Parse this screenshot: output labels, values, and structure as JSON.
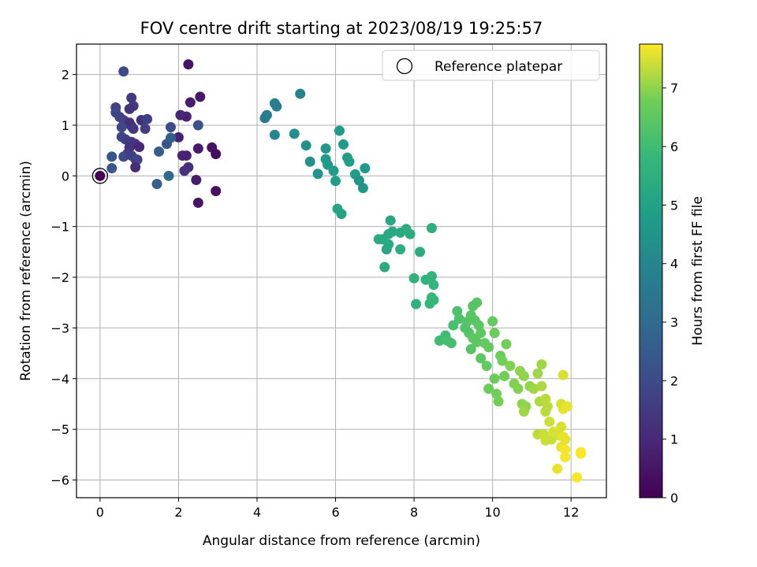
{
  "chart_data": {
    "type": "scatter",
    "title": "FOV centre drift starting at 2023/08/19 19:25:57",
    "xlabel": "Angular distance from reference (arcmin)",
    "ylabel": "Rotation from reference (arcmin)",
    "xlim": [
      -0.6,
      12.9
    ],
    "ylim": [
      -6.35,
      2.6
    ],
    "xticks": [
      0,
      2,
      4,
      6,
      8,
      10,
      12
    ],
    "yticks": [
      -6,
      -5,
      -4,
      -3,
      -2,
      -1,
      0,
      1,
      2
    ],
    "grid": true,
    "legend": {
      "position": "top-right",
      "entries": [
        "Reference platepar"
      ]
    },
    "colorbar": {
      "label": "Hours from first FF file",
      "range": [
        0,
        7.75
      ],
      "ticks": [
        0,
        1,
        2,
        3,
        4,
        5,
        6,
        7
      ],
      "colormap": "viridis"
    },
    "reference_point": {
      "x": 0,
      "y": 0
    },
    "points": [
      {
        "x": 0.0,
        "y": 0.0,
        "c": 0.0
      },
      {
        "x": 2.25,
        "y": 2.2,
        "c": 0.5
      },
      {
        "x": 2.55,
        "y": 1.56,
        "c": 0.6
      },
      {
        "x": 2.3,
        "y": 1.45,
        "c": 0.7
      },
      {
        "x": 2.2,
        "y": 1.17,
        "c": 0.8
      },
      {
        "x": 2.05,
        "y": 1.2,
        "c": 0.9
      },
      {
        "x": 2.0,
        "y": 0.76,
        "c": 0.8
      },
      {
        "x": 2.5,
        "y": 0.54,
        "c": 0.6
      },
      {
        "x": 2.85,
        "y": 0.56,
        "c": 0.4
      },
      {
        "x": 2.95,
        "y": 0.43,
        "c": 0.3
      },
      {
        "x": 2.1,
        "y": 0.4,
        "c": 0.9
      },
      {
        "x": 2.2,
        "y": 0.4,
        "c": 0.8
      },
      {
        "x": 2.25,
        "y": 0.17,
        "c": 1.2
      },
      {
        "x": 2.15,
        "y": 0.1,
        "c": 1.3
      },
      {
        "x": 2.45,
        "y": -0.08,
        "c": 0.7
      },
      {
        "x": 2.95,
        "y": -0.3,
        "c": 0.4
      },
      {
        "x": 2.5,
        "y": -0.53,
        "c": 0.5
      },
      {
        "x": 2.5,
        "y": 1.0,
        "c": 2.2
      },
      {
        "x": 0.6,
        "y": 2.06,
        "c": 2.0
      },
      {
        "x": 0.8,
        "y": 1.54,
        "c": 1.5
      },
      {
        "x": 0.85,
        "y": 1.38,
        "c": 1.4
      },
      {
        "x": 0.75,
        "y": 1.32,
        "c": 1.3
      },
      {
        "x": 0.4,
        "y": 1.35,
        "c": 1.8
      },
      {
        "x": 0.4,
        "y": 1.25,
        "c": 1.9
      },
      {
        "x": 0.5,
        "y": 1.16,
        "c": 1.8
      },
      {
        "x": 0.6,
        "y": 1.1,
        "c": 1.8
      },
      {
        "x": 0.75,
        "y": 1.05,
        "c": 1.3
      },
      {
        "x": 1.05,
        "y": 1.1,
        "c": 1.2
      },
      {
        "x": 1.2,
        "y": 1.12,
        "c": 1.7
      },
      {
        "x": 0.55,
        "y": 0.96,
        "c": 1.9
      },
      {
        "x": 0.8,
        "y": 0.98,
        "c": 1.2
      },
      {
        "x": 0.85,
        "y": 0.93,
        "c": 1.4
      },
      {
        "x": 1.15,
        "y": 0.93,
        "c": 1.6
      },
      {
        "x": 1.8,
        "y": 0.96,
        "c": 2.1
      },
      {
        "x": 0.55,
        "y": 0.77,
        "c": 1.9
      },
      {
        "x": 0.65,
        "y": 0.72,
        "c": 1.7
      },
      {
        "x": 0.8,
        "y": 0.67,
        "c": 1.5
      },
      {
        "x": 0.9,
        "y": 0.63,
        "c": 1.4
      },
      {
        "x": 1.0,
        "y": 0.57,
        "c": 1.0
      },
      {
        "x": 0.75,
        "y": 0.56,
        "c": 1.3
      },
      {
        "x": 0.7,
        "y": 0.44,
        "c": 1.5
      },
      {
        "x": 0.6,
        "y": 0.38,
        "c": 2.0
      },
      {
        "x": 0.8,
        "y": 0.4,
        "c": 1.6
      },
      {
        "x": 0.9,
        "y": 0.33,
        "c": 1.7
      },
      {
        "x": 0.95,
        "y": 0.32,
        "c": 1.8
      },
      {
        "x": 0.9,
        "y": 0.17,
        "c": 1.1
      },
      {
        "x": 0.3,
        "y": 0.38,
        "c": 2.4
      },
      {
        "x": 0.3,
        "y": 0.15,
        "c": 2.3
      },
      {
        "x": 1.5,
        "y": 0.48,
        "c": 2.6
      },
      {
        "x": 1.7,
        "y": 0.63,
        "c": 2.3
      },
      {
        "x": 1.8,
        "y": 0.75,
        "c": 2.6
      },
      {
        "x": 1.75,
        "y": 0.0,
        "c": 2.9
      },
      {
        "x": 1.45,
        "y": -0.16,
        "c": 2.7
      },
      {
        "x": 4.45,
        "y": 1.43,
        "c": 3.8
      },
      {
        "x": 4.5,
        "y": 1.37,
        "c": 3.7
      },
      {
        "x": 5.1,
        "y": 1.62,
        "c": 3.9
      },
      {
        "x": 4.2,
        "y": 1.14,
        "c": 3.5
      },
      {
        "x": 4.25,
        "y": 1.2,
        "c": 3.6
      },
      {
        "x": 4.45,
        "y": 0.81,
        "c": 4.0
      },
      {
        "x": 4.95,
        "y": 0.83,
        "c": 4.3
      },
      {
        "x": 5.25,
        "y": 0.6,
        "c": 4.4
      },
      {
        "x": 5.35,
        "y": 0.28,
        "c": 4.4
      },
      {
        "x": 5.55,
        "y": 0.04,
        "c": 4.5
      },
      {
        "x": 5.75,
        "y": 0.54,
        "c": 4.6
      },
      {
        "x": 5.75,
        "y": 0.33,
        "c": 4.7
      },
      {
        "x": 5.8,
        "y": 0.22,
        "c": 4.7
      },
      {
        "x": 5.95,
        "y": 0.1,
        "c": 4.8
      },
      {
        "x": 6.0,
        "y": -0.1,
        "c": 4.9
      },
      {
        "x": 6.1,
        "y": 0.89,
        "c": 4.8
      },
      {
        "x": 6.2,
        "y": 0.62,
        "c": 4.7
      },
      {
        "x": 6.3,
        "y": 0.36,
        "c": 4.8
      },
      {
        "x": 6.35,
        "y": 0.28,
        "c": 4.9
      },
      {
        "x": 6.5,
        "y": 0.03,
        "c": 4.9
      },
      {
        "x": 6.6,
        "y": -0.09,
        "c": 4.5
      },
      {
        "x": 6.7,
        "y": -0.24,
        "c": 4.6
      },
      {
        "x": 6.75,
        "y": 0.15,
        "c": 4.7
      },
      {
        "x": 6.05,
        "y": -0.65,
        "c": 5.1
      },
      {
        "x": 6.15,
        "y": -0.75,
        "c": 5.0
      },
      {
        "x": 7.4,
        "y": -0.88,
        "c": 5.2
      },
      {
        "x": 7.45,
        "y": -1.1,
        "c": 5.2
      },
      {
        "x": 7.35,
        "y": -1.15,
        "c": 5.3
      },
      {
        "x": 7.2,
        "y": -1.25,
        "c": 5.2
      },
      {
        "x": 7.35,
        "y": -1.35,
        "c": 5.3
      },
      {
        "x": 7.3,
        "y": -1.45,
        "c": 5.2
      },
      {
        "x": 7.65,
        "y": -1.12,
        "c": 5.3
      },
      {
        "x": 7.8,
        "y": -1.05,
        "c": 5.4
      },
      {
        "x": 7.9,
        "y": -1.15,
        "c": 5.4
      },
      {
        "x": 8.45,
        "y": -1.03,
        "c": 5.5
      },
      {
        "x": 8.15,
        "y": -1.5,
        "c": 5.4
      },
      {
        "x": 7.65,
        "y": -1.45,
        "c": 5.4
      },
      {
        "x": 7.1,
        "y": -1.25,
        "c": 5.3
      },
      {
        "x": 7.25,
        "y": -1.8,
        "c": 5.3
      },
      {
        "x": 8.0,
        "y": -2.02,
        "c": 5.6
      },
      {
        "x": 8.3,
        "y": -2.05,
        "c": 5.6
      },
      {
        "x": 8.45,
        "y": -1.98,
        "c": 5.7
      },
      {
        "x": 8.5,
        "y": -2.15,
        "c": 5.7
      },
      {
        "x": 8.45,
        "y": -2.4,
        "c": 5.8
      },
      {
        "x": 8.5,
        "y": -2.45,
        "c": 5.8
      },
      {
        "x": 8.4,
        "y": -2.52,
        "c": 5.8
      },
      {
        "x": 8.05,
        "y": -2.53,
        "c": 5.6
      },
      {
        "x": 8.65,
        "y": -3.25,
        "c": 6.0
      },
      {
        "x": 8.8,
        "y": -3.15,
        "c": 6.0
      },
      {
        "x": 8.85,
        "y": -3.25,
        "c": 6.1
      },
      {
        "x": 8.95,
        "y": -3.3,
        "c": 6.1
      },
      {
        "x": 9.0,
        "y": -2.95,
        "c": 6.1
      },
      {
        "x": 9.1,
        "y": -2.67,
        "c": 6.2
      },
      {
        "x": 9.15,
        "y": -2.82,
        "c": 6.2
      },
      {
        "x": 9.3,
        "y": -3.0,
        "c": 6.3
      },
      {
        "x": 9.35,
        "y": -2.88,
        "c": 6.3
      },
      {
        "x": 9.4,
        "y": -3.1,
        "c": 6.3
      },
      {
        "x": 9.45,
        "y": -2.75,
        "c": 6.4
      },
      {
        "x": 9.5,
        "y": -2.57,
        "c": 6.4
      },
      {
        "x": 9.6,
        "y": -2.5,
        "c": 6.4
      },
      {
        "x": 9.55,
        "y": -2.85,
        "c": 6.4
      },
      {
        "x": 9.65,
        "y": -2.95,
        "c": 6.5
      },
      {
        "x": 9.5,
        "y": -3.2,
        "c": 6.5
      },
      {
        "x": 9.6,
        "y": -3.28,
        "c": 6.5
      },
      {
        "x": 9.7,
        "y": -3.1,
        "c": 6.5
      },
      {
        "x": 9.8,
        "y": -3.3,
        "c": 6.6
      },
      {
        "x": 9.9,
        "y": -3.38,
        "c": 6.6
      },
      {
        "x": 10.0,
        "y": -2.87,
        "c": 6.6
      },
      {
        "x": 10.05,
        "y": -3.1,
        "c": 6.7
      },
      {
        "x": 9.45,
        "y": -3.42,
        "c": 6.4
      },
      {
        "x": 9.7,
        "y": -3.6,
        "c": 6.5
      },
      {
        "x": 9.85,
        "y": -3.75,
        "c": 6.6
      },
      {
        "x": 10.05,
        "y": -4.0,
        "c": 6.7
      },
      {
        "x": 10.2,
        "y": -3.55,
        "c": 6.7
      },
      {
        "x": 10.25,
        "y": -3.65,
        "c": 6.8
      },
      {
        "x": 10.35,
        "y": -3.32,
        "c": 6.8
      },
      {
        "x": 10.45,
        "y": -3.75,
        "c": 6.9
      },
      {
        "x": 10.3,
        "y": -3.95,
        "c": 6.8
      },
      {
        "x": 9.9,
        "y": -4.2,
        "c": 6.7
      },
      {
        "x": 10.1,
        "y": -4.3,
        "c": 6.8
      },
      {
        "x": 10.15,
        "y": -4.45,
        "c": 6.8
      },
      {
        "x": 10.55,
        "y": -4.1,
        "c": 6.9
      },
      {
        "x": 10.65,
        "y": -4.2,
        "c": 6.9
      },
      {
        "x": 10.7,
        "y": -3.85,
        "c": 7.0
      },
      {
        "x": 10.8,
        "y": -3.95,
        "c": 7.0
      },
      {
        "x": 10.95,
        "y": -4.15,
        "c": 7.0
      },
      {
        "x": 11.05,
        "y": -4.2,
        "c": 7.1
      },
      {
        "x": 11.15,
        "y": -3.9,
        "c": 7.1
      },
      {
        "x": 11.25,
        "y": -3.72,
        "c": 7.1
      },
      {
        "x": 11.25,
        "y": -4.15,
        "c": 7.2
      },
      {
        "x": 10.75,
        "y": -4.5,
        "c": 7.0
      },
      {
        "x": 10.85,
        "y": -4.55,
        "c": 7.0
      },
      {
        "x": 10.8,
        "y": -4.65,
        "c": 7.1
      },
      {
        "x": 11.2,
        "y": -4.45,
        "c": 7.2
      },
      {
        "x": 11.35,
        "y": -4.4,
        "c": 7.3
      },
      {
        "x": 11.4,
        "y": -4.55,
        "c": 7.3
      },
      {
        "x": 11.35,
        "y": -4.65,
        "c": 7.3
      },
      {
        "x": 11.45,
        "y": -4.85,
        "c": 7.4
      },
      {
        "x": 11.15,
        "y": -5.1,
        "c": 7.3
      },
      {
        "x": 11.3,
        "y": -5.1,
        "c": 7.4
      },
      {
        "x": 11.35,
        "y": -5.22,
        "c": 7.4
      },
      {
        "x": 11.5,
        "y": -5.2,
        "c": 7.4
      },
      {
        "x": 11.55,
        "y": -5.05,
        "c": 7.5
      },
      {
        "x": 11.7,
        "y": -5.12,
        "c": 7.5
      },
      {
        "x": 11.75,
        "y": -4.95,
        "c": 7.5
      },
      {
        "x": 11.8,
        "y": -4.6,
        "c": 7.6
      },
      {
        "x": 11.75,
        "y": -4.5,
        "c": 7.5
      },
      {
        "x": 11.9,
        "y": -4.55,
        "c": 7.6
      },
      {
        "x": 11.8,
        "y": -3.93,
        "c": 7.5
      },
      {
        "x": 11.8,
        "y": -5.15,
        "c": 7.6
      },
      {
        "x": 11.85,
        "y": -5.2,
        "c": 7.6
      },
      {
        "x": 11.75,
        "y": -5.35,
        "c": 7.6
      },
      {
        "x": 11.85,
        "y": -5.4,
        "c": 7.7
      },
      {
        "x": 11.85,
        "y": -5.55,
        "c": 7.7
      },
      {
        "x": 11.65,
        "y": -5.78,
        "c": 7.6
      },
      {
        "x": 12.15,
        "y": -5.95,
        "c": 7.7
      },
      {
        "x": 12.25,
        "y": -5.45,
        "c": 7.75
      },
      {
        "x": 12.25,
        "y": -5.48,
        "c": 7.75
      }
    ]
  }
}
